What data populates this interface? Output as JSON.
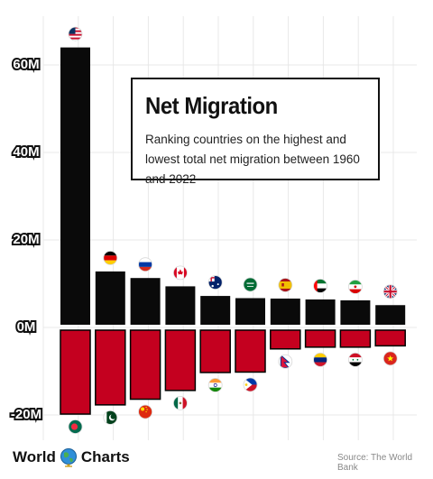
{
  "title": "Net Migration",
  "subtitle": "Ranking countries on the highest and lowest total net migration between 1960 and 2022",
  "source": "Source: The World Bank",
  "logo": {
    "left": "World",
    "right": "Charts"
  },
  "colors": {
    "positive": "#0a0a0a",
    "negative": "#c4001f",
    "grid": "#e8e8e8"
  },
  "chart_data": {
    "type": "bar",
    "title": "Net Migration",
    "subtitle": "Ranking countries on the highest and lowest total net migration between 1960 and 2022",
    "ylim": [
      -20000000,
      65000000
    ],
    "grid": true,
    "yticks": [
      {
        "value": 60000000,
        "label": "60M"
      },
      {
        "value": 40000000,
        "label": "40M"
      },
      {
        "value": 20000000,
        "label": "20M"
      },
      {
        "value": 0,
        "label": "0M"
      },
      {
        "value": -20000000,
        "label": "-20M"
      }
    ],
    "series": [
      {
        "values": [
          64000000,
          12800000,
          11300000,
          9400000,
          7200000,
          6700000,
          6600000,
          6400000,
          6200000,
          5100000
        ],
        "flags": [
          "usa-flag-icon",
          "germany-flag-icon",
          "russia-flag-icon",
          "canada-flag-icon",
          "australia-flag-icon",
          "saudi-arabia-flag-icon",
          "spain-flag-icon",
          "uae-flag-icon",
          "iran-flag-icon",
          "uk-flag-icon"
        ]
      },
      {
        "values": [
          -19800000,
          -17700000,
          -16400000,
          -14400000,
          -10300000,
          -10200000,
          -4900000,
          -4500000,
          -4500000,
          -4200000
        ],
        "flags": [
          "bangladesh-flag-icon",
          "pakistan-flag-icon",
          "china-flag-icon",
          "mexico-flag-icon",
          "india-flag-icon",
          "philippines-flag-icon",
          "nepal-flag-icon",
          "venezuela-flag-icon",
          "syria-flag-icon",
          "vietnam-flag-icon"
        ]
      }
    ]
  }
}
